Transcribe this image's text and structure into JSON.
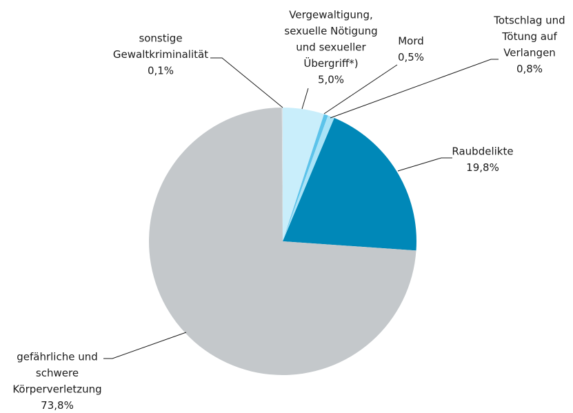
{
  "chart_data": {
    "type": "pie",
    "labels": [
      [
        "Vergewaltigung,",
        "sexuelle Nötigung",
        "und sexueller",
        "Übergriff*)"
      ],
      [
        "Mord"
      ],
      [
        "Totschlag und",
        "Tötung auf",
        "Verlangen"
      ],
      [
        "Raubdelikte"
      ],
      [
        "gefährliche und",
        "schwere",
        "Körperverletzung"
      ],
      [
        "sonstige",
        "Gewaltkriminalität"
      ]
    ],
    "values": [
      5.0,
      0.5,
      0.8,
      19.8,
      73.8,
      0.1
    ],
    "value_labels": [
      "5,0%",
      "0,5%",
      "0,8%",
      "19,8%",
      "73,8%",
      "0,1%"
    ],
    "colors": [
      "#c9eefb",
      "#5cc3ea",
      "#a9e3f7",
      "#0088b8",
      "#c4c8cb",
      "#dde4e8"
    ]
  }
}
